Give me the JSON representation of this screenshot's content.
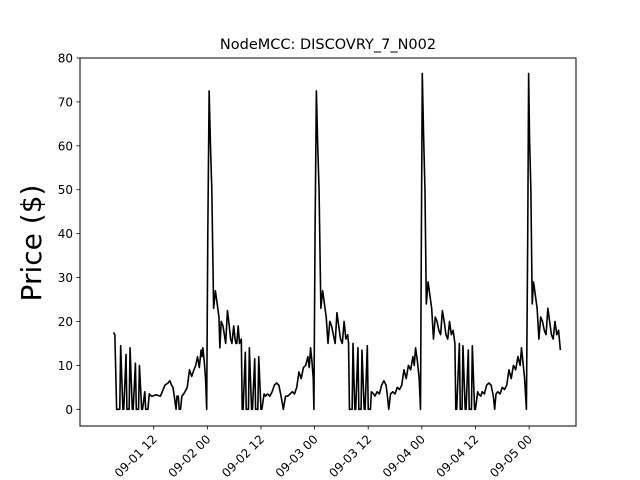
{
  "chart_data": {
    "type": "line",
    "title": "NodeMCC: DISCOVRY_7_N002",
    "xlabel": "",
    "ylabel": "Price ($)",
    "xlim": [
      -4.5,
      106.5
    ],
    "ylim": [
      -3.8,
      80
    ],
    "yticks": [
      0,
      10,
      20,
      30,
      40,
      50,
      60,
      70,
      80
    ],
    "xticks": [
      {
        "x": 12,
        "label": "09-01 12"
      },
      {
        "x": 24,
        "label": "09-02 00"
      },
      {
        "x": 36,
        "label": "09-02 12"
      },
      {
        "x": 48,
        "label": "09-03 00"
      },
      {
        "x": 60,
        "label": "09-03 12"
      },
      {
        "x": 72,
        "label": "09-04 00"
      },
      {
        "x": 84,
        "label": "09-04 12"
      },
      {
        "x": 96,
        "label": "09-05 00"
      }
    ],
    "series": [
      {
        "name": "price",
        "color": "#000000",
        "x": [
          3,
          3.3,
          3.7,
          4.4,
          4.6,
          5.1,
          5.3,
          5.8,
          6,
          6.5,
          6.7,
          7.2,
          7.4,
          7.9,
          8.1,
          8.6,
          8.8,
          9.3,
          9.5,
          10,
          10.2,
          10.7,
          11,
          11.5,
          11.7,
          12.5,
          13.5,
          14.5,
          15.2,
          15.6,
          16,
          16.3,
          16.6,
          17,
          17.2,
          17.5,
          17.7,
          18,
          18.3,
          18.7,
          19,
          19.5,
          20,
          20.5,
          21,
          21.4,
          21.8,
          22.2,
          22.6,
          22.8,
          23,
          23.3,
          23.6,
          23.85,
          24.1,
          24.4,
          24.7,
          25,
          25.4,
          25.8,
          26.2,
          26.6,
          26.8,
          27.1,
          27.5,
          27.8,
          28.1,
          28.5,
          28.9,
          29.2,
          29.5,
          29.9,
          30.2,
          30.4,
          30.6,
          30.9,
          31.2,
          31.6,
          31.8,
          32,
          32.5,
          32.7,
          33.2,
          33.4,
          33.9,
          34.1,
          34.6,
          34.8,
          35.3,
          35.5,
          36,
          36.2,
          36.7,
          37,
          37.5,
          38,
          38.5,
          39,
          39.5,
          40,
          40.5,
          41,
          41.5,
          42,
          42.5,
          43,
          43.5,
          44,
          44.5,
          45,
          45.5,
          46,
          46.5,
          46.8,
          47.1,
          47.4,
          47.7,
          47.85,
          48.1,
          48.4,
          48.7,
          49,
          49.4,
          49.8,
          50.2,
          50.6,
          51,
          51.4,
          51.8,
          52.2,
          52.6,
          53,
          53.4,
          53.8,
          54.2,
          54.6,
          55,
          55.4,
          55.6,
          55.8,
          56.4,
          56.6,
          57,
          57.2,
          57.7,
          57.9,
          58.4,
          58.6,
          59.1,
          59.3,
          59.8,
          60,
          60.5,
          60.7,
          61.2,
          61.5,
          62,
          62.5,
          63,
          63.5,
          64,
          64.3,
          64.6,
          65,
          65.5,
          66,
          66.5,
          67,
          67.5,
          68,
          68.5,
          69,
          69.5,
          70,
          70.3,
          70.6,
          71,
          71.4,
          71.7,
          71.9,
          72.1,
          72.4,
          72.7,
          73,
          73.4,
          73.8,
          74.2,
          74.6,
          75,
          75.4,
          75.8,
          76.2,
          76.6,
          77,
          77.4,
          77.8,
          78.2,
          78.6,
          79,
          79.4,
          79.6,
          79.8,
          80.4,
          80.6,
          81,
          81.2,
          81.7,
          81.9,
          82.4,
          82.6,
          83.1,
          83.3,
          83.8,
          84,
          84.5,
          84.7,
          85.2,
          85.5,
          86,
          86.5,
          87,
          87.5,
          88,
          88.3,
          88.6,
          89,
          89.5,
          90,
          90.5,
          91,
          91.5,
          92,
          92.5,
          93,
          93.5,
          94,
          94.3,
          94.6,
          95,
          95.4,
          95.7,
          95.9,
          96.1,
          96.4,
          96.7,
          97,
          97.4,
          97.8,
          98.2,
          98.6,
          99,
          99.4,
          99.8,
          100.2,
          100.6,
          101,
          101.4,
          101.8,
          102.2,
          102.6,
          103
        ],
        "y": [
          17.5,
          17,
          0,
          0,
          14.5,
          0,
          0,
          12.5,
          0,
          0,
          14,
          0,
          0,
          10.5,
          0,
          0,
          10,
          0,
          0,
          4,
          0,
          0,
          3.5,
          3,
          3,
          3.3,
          3,
          5.5,
          6,
          6.5,
          5.5,
          5,
          3,
          0,
          3,
          3,
          0,
          0,
          3,
          3.5,
          4,
          5,
          9,
          7.5,
          9,
          10,
          12,
          9.5,
          13.5,
          12,
          14,
          11,
          7,
          0,
          40,
          72.5,
          60,
          50,
          23,
          27,
          24,
          21,
          14,
          20,
          19,
          17,
          15,
          22.5,
          19,
          16,
          15,
          19,
          16,
          15,
          15,
          19,
          15,
          16,
          0,
          0,
          13,
          0,
          0,
          14,
          0,
          0,
          11.5,
          0,
          0,
          12,
          0,
          0,
          3.5,
          3,
          3.5,
          3,
          4,
          5.5,
          6,
          5.5,
          3,
          0,
          3,
          3,
          3.5,
          4,
          3.5,
          5,
          8.5,
          7,
          9.5,
          10,
          12,
          9.5,
          14,
          11,
          7,
          0,
          40,
          72.5,
          60,
          50,
          23,
          27,
          24,
          21,
          15,
          20,
          19,
          17,
          15,
          22,
          19,
          16,
          15,
          20,
          16,
          17,
          15,
          0,
          0,
          15,
          0,
          0,
          14,
          0,
          0,
          13.5,
          0,
          0,
          14.5,
          0,
          0,
          4,
          3.5,
          3,
          4,
          3.5,
          5.5,
          6.5,
          5.5,
          3,
          0,
          3.5,
          4,
          3.5,
          5,
          4.5,
          5.5,
          9,
          7,
          10,
          9,
          12,
          10,
          14,
          11,
          7,
          0,
          40,
          76.5,
          62,
          50,
          24,
          29,
          26,
          23,
          16,
          21,
          20,
          18,
          17,
          22.5,
          20,
          17,
          16,
          20,
          17,
          18,
          15,
          0,
          0,
          15,
          0,
          0,
          14.5,
          0,
          0,
          13.5,
          0,
          0,
          14.5,
          0,
          0,
          4,
          3.5,
          3,
          4,
          3.5,
          5.5,
          6,
          5.5,
          3,
          0,
          3.5,
          4,
          3.5,
          5,
          4.5,
          5.5,
          9,
          7,
          10,
          9,
          12,
          10,
          14,
          11,
          7,
          0,
          40,
          76.5,
          62,
          50,
          24,
          29,
          26,
          23,
          16,
          21,
          20,
          18,
          17,
          23,
          20,
          17,
          16,
          20,
          17,
          18,
          13.5
        ]
      }
    ]
  }
}
